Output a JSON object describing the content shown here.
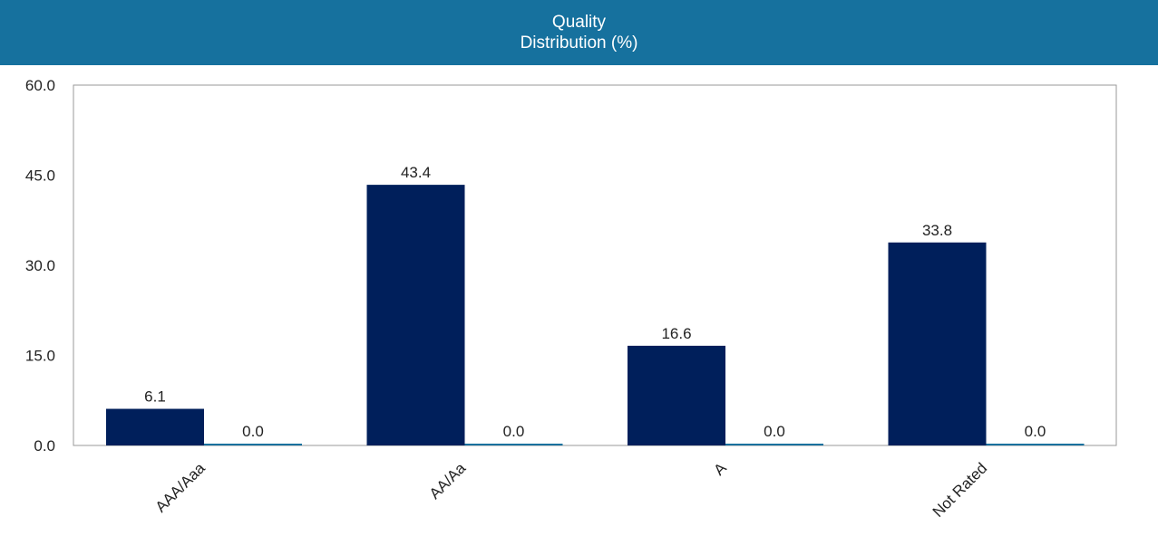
{
  "header": {
    "title_line1": "Quality",
    "title_line2": "Distribution (%)"
  },
  "chart_data": {
    "type": "bar",
    "categories": [
      "AAA/Aaa",
      "AA/Aa",
      "A",
      "Not Rated"
    ],
    "series": [
      {
        "values": [
          6.1,
          43.4,
          16.6,
          33.8
        ],
        "color": "#001f5b"
      },
      {
        "values": [
          0.0,
          0.0,
          0.0,
          0.0
        ],
        "color": "#16719e"
      }
    ],
    "yticks": [
      "0.0",
      "15.0",
      "30.0",
      "45.0",
      "60.0"
    ],
    "ylim": [
      0,
      60
    ],
    "grid": false,
    "legend": "none",
    "colors": {
      "header": "#16719e",
      "axis": "#999999"
    }
  }
}
